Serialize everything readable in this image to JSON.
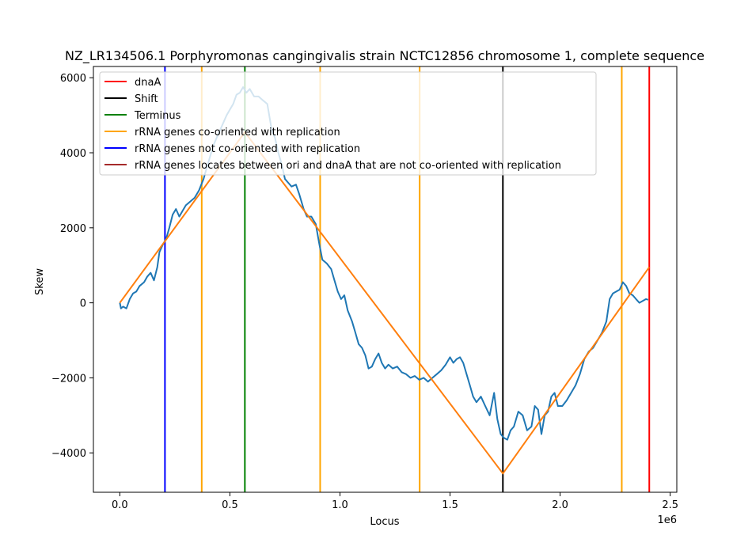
{
  "chart_data": {
    "type": "line",
    "title": "NZ_LR134506.1 Porphyromonas cangingivalis strain NCTC12856 chromosome 1, complete sequence",
    "xlabel": "Locus",
    "ylabel": "Skew",
    "x_offset_label": "1e6",
    "xlim": [
      -120000,
      2530000
    ],
    "ylim": [
      -5050000,
      6300
    ],
    "ylim_note": "",
    "xticks": [
      0,
      500000,
      1000000,
      1500000,
      2000000,
      2500000
    ],
    "xtick_labels": [
      "0.0",
      "0.5",
      "1.0",
      "1.5",
      "2.0",
      "2.5"
    ],
    "yticks": [
      -4000,
      -2000,
      0,
      2000,
      4000,
      6000
    ],
    "ytick_labels": [
      "−4000",
      "−2000",
      "0",
      "2000",
      "4000",
      "6000"
    ],
    "grid": false,
    "legend_position": "upper-left",
    "legend": [
      {
        "label": "dnaA",
        "color": "#ff0000"
      },
      {
        "label": "Shift",
        "color": "#000000"
      },
      {
        "label": "Terminus",
        "color": "#008000"
      },
      {
        "label": "rRNA genes co-oriented with replication",
        "color": "#ffa500"
      },
      {
        "label": "rRNA genes not co-oriented with replication",
        "color": "#0000ff"
      },
      {
        "label": "rRNA genes locates between ori and dnaA that are not co-oriented with replication",
        "color": "#a52a2a"
      }
    ],
    "vlines": [
      {
        "name": "dnaA",
        "x": 2405000,
        "color": "#ff0000"
      },
      {
        "name": "Shift",
        "x": 1740000,
        "color": "#000000"
      },
      {
        "name": "Terminus",
        "x": 568000,
        "color": "#008000"
      },
      {
        "name": "rRNA co-oriented",
        "x": 372000,
        "color": "#ffa500"
      },
      {
        "name": "rRNA co-oriented",
        "x": 910000,
        "color": "#ffa500"
      },
      {
        "name": "rRNA co-oriented",
        "x": 1362000,
        "color": "#ffa500"
      },
      {
        "name": "rRNA co-oriented",
        "x": 2280000,
        "color": "#ffa500"
      },
      {
        "name": "rRNA not co-oriented",
        "x": 205000,
        "color": "#0000ff"
      }
    ],
    "series": [
      {
        "color": "#1f77b4",
        "points": [
          [
            0,
            0
          ],
          [
            5000,
            -150
          ],
          [
            15000,
            -100
          ],
          [
            30000,
            -150
          ],
          [
            45000,
            100
          ],
          [
            60000,
            250
          ],
          [
            75000,
            300
          ],
          [
            90000,
            450
          ],
          [
            110000,
            550
          ],
          [
            125000,
            700
          ],
          [
            140000,
            800
          ],
          [
            155000,
            600
          ],
          [
            170000,
            950
          ],
          [
            180000,
            1350
          ],
          [
            195000,
            1550
          ],
          [
            210000,
            1700
          ],
          [
            225000,
            2000
          ],
          [
            240000,
            2350
          ],
          [
            255000,
            2500
          ],
          [
            270000,
            2300
          ],
          [
            285000,
            2450
          ],
          [
            300000,
            2600
          ],
          [
            320000,
            2700
          ],
          [
            340000,
            2800
          ],
          [
            360000,
            3000
          ],
          [
            380000,
            3300
          ],
          [
            395000,
            3600
          ],
          [
            410000,
            3900
          ],
          [
            425000,
            4200
          ],
          [
            440000,
            4400
          ],
          [
            455000,
            4600
          ],
          [
            470000,
            4800
          ],
          [
            485000,
            5000
          ],
          [
            500000,
            5150
          ],
          [
            515000,
            5300
          ],
          [
            530000,
            5550
          ],
          [
            545000,
            5600
          ],
          [
            560000,
            5750
          ],
          [
            575000,
            5600
          ],
          [
            590000,
            5700
          ],
          [
            610000,
            5500
          ],
          [
            630000,
            5500
          ],
          [
            650000,
            5400
          ],
          [
            670000,
            5300
          ],
          [
            690000,
            4600
          ],
          [
            705000,
            4400
          ],
          [
            720000,
            4000
          ],
          [
            735000,
            3700
          ],
          [
            750000,
            3300
          ],
          [
            765000,
            3200
          ],
          [
            780000,
            3100
          ],
          [
            800000,
            3150
          ],
          [
            815000,
            2900
          ],
          [
            835000,
            2500
          ],
          [
            850000,
            2300
          ],
          [
            870000,
            2300
          ],
          [
            890000,
            2100
          ],
          [
            905000,
            1600
          ],
          [
            920000,
            1150
          ],
          [
            940000,
            1050
          ],
          [
            960000,
            900
          ],
          [
            975000,
            600
          ],
          [
            990000,
            300
          ],
          [
            1005000,
            100
          ],
          [
            1020000,
            200
          ],
          [
            1035000,
            -200
          ],
          [
            1055000,
            -500
          ],
          [
            1070000,
            -800
          ],
          [
            1085000,
            -1100
          ],
          [
            1100000,
            -1200
          ],
          [
            1115000,
            -1400
          ],
          [
            1130000,
            -1750
          ],
          [
            1145000,
            -1700
          ],
          [
            1160000,
            -1500
          ],
          [
            1175000,
            -1350
          ],
          [
            1190000,
            -1600
          ],
          [
            1205000,
            -1750
          ],
          [
            1220000,
            -1650
          ],
          [
            1240000,
            -1750
          ],
          [
            1260000,
            -1700
          ],
          [
            1280000,
            -1850
          ],
          [
            1300000,
            -1900
          ],
          [
            1320000,
            -2000
          ],
          [
            1340000,
            -1950
          ],
          [
            1360000,
            -2050
          ],
          [
            1380000,
            -2000
          ],
          [
            1400000,
            -2100
          ],
          [
            1420000,
            -2000
          ],
          [
            1440000,
            -1900
          ],
          [
            1460000,
            -1800
          ],
          [
            1480000,
            -1650
          ],
          [
            1500000,
            -1450
          ],
          [
            1515000,
            -1600
          ],
          [
            1530000,
            -1500
          ],
          [
            1545000,
            -1450
          ],
          [
            1560000,
            -1600
          ],
          [
            1575000,
            -1900
          ],
          [
            1590000,
            -2200
          ],
          [
            1605000,
            -2500
          ],
          [
            1620000,
            -2650
          ],
          [
            1640000,
            -2500
          ],
          [
            1660000,
            -2750
          ],
          [
            1680000,
            -3000
          ],
          [
            1700000,
            -2400
          ],
          [
            1715000,
            -3100
          ],
          [
            1730000,
            -3500
          ],
          [
            1745000,
            -3600
          ],
          [
            1760000,
            -3650
          ],
          [
            1775000,
            -3400
          ],
          [
            1790000,
            -3300
          ],
          [
            1810000,
            -2900
          ],
          [
            1830000,
            -3000
          ],
          [
            1850000,
            -3400
          ],
          [
            1870000,
            -3300
          ],
          [
            1885000,
            -2750
          ],
          [
            1900000,
            -2850
          ],
          [
            1915000,
            -3500
          ],
          [
            1930000,
            -3000
          ],
          [
            1945000,
            -2900
          ],
          [
            1960000,
            -2500
          ],
          [
            1975000,
            -2400
          ],
          [
            1990000,
            -2750
          ],
          [
            2010000,
            -2750
          ],
          [
            2030000,
            -2600
          ],
          [
            2050000,
            -2400
          ],
          [
            2070000,
            -2200
          ],
          [
            2090000,
            -1900
          ],
          [
            2110000,
            -1500
          ],
          [
            2130000,
            -1300
          ],
          [
            2150000,
            -1200
          ],
          [
            2170000,
            -1000
          ],
          [
            2190000,
            -800
          ],
          [
            2210000,
            -500
          ],
          [
            2225000,
            100
          ],
          [
            2240000,
            250
          ],
          [
            2255000,
            300
          ],
          [
            2270000,
            350
          ],
          [
            2285000,
            550
          ],
          [
            2300000,
            450
          ],
          [
            2315000,
            250
          ],
          [
            2330000,
            200
          ],
          [
            2345000,
            100
          ],
          [
            2360000,
            0
          ],
          [
            2375000,
            50
          ],
          [
            2390000,
            100
          ],
          [
            2400000,
            80
          ]
        ]
      },
      {
        "color": "#ff7f0e",
        "points": [
          [
            0,
            0
          ],
          [
            568000,
            4550
          ],
          [
            1740000,
            -4550
          ],
          [
            2405000,
            950
          ]
        ]
      }
    ]
  }
}
